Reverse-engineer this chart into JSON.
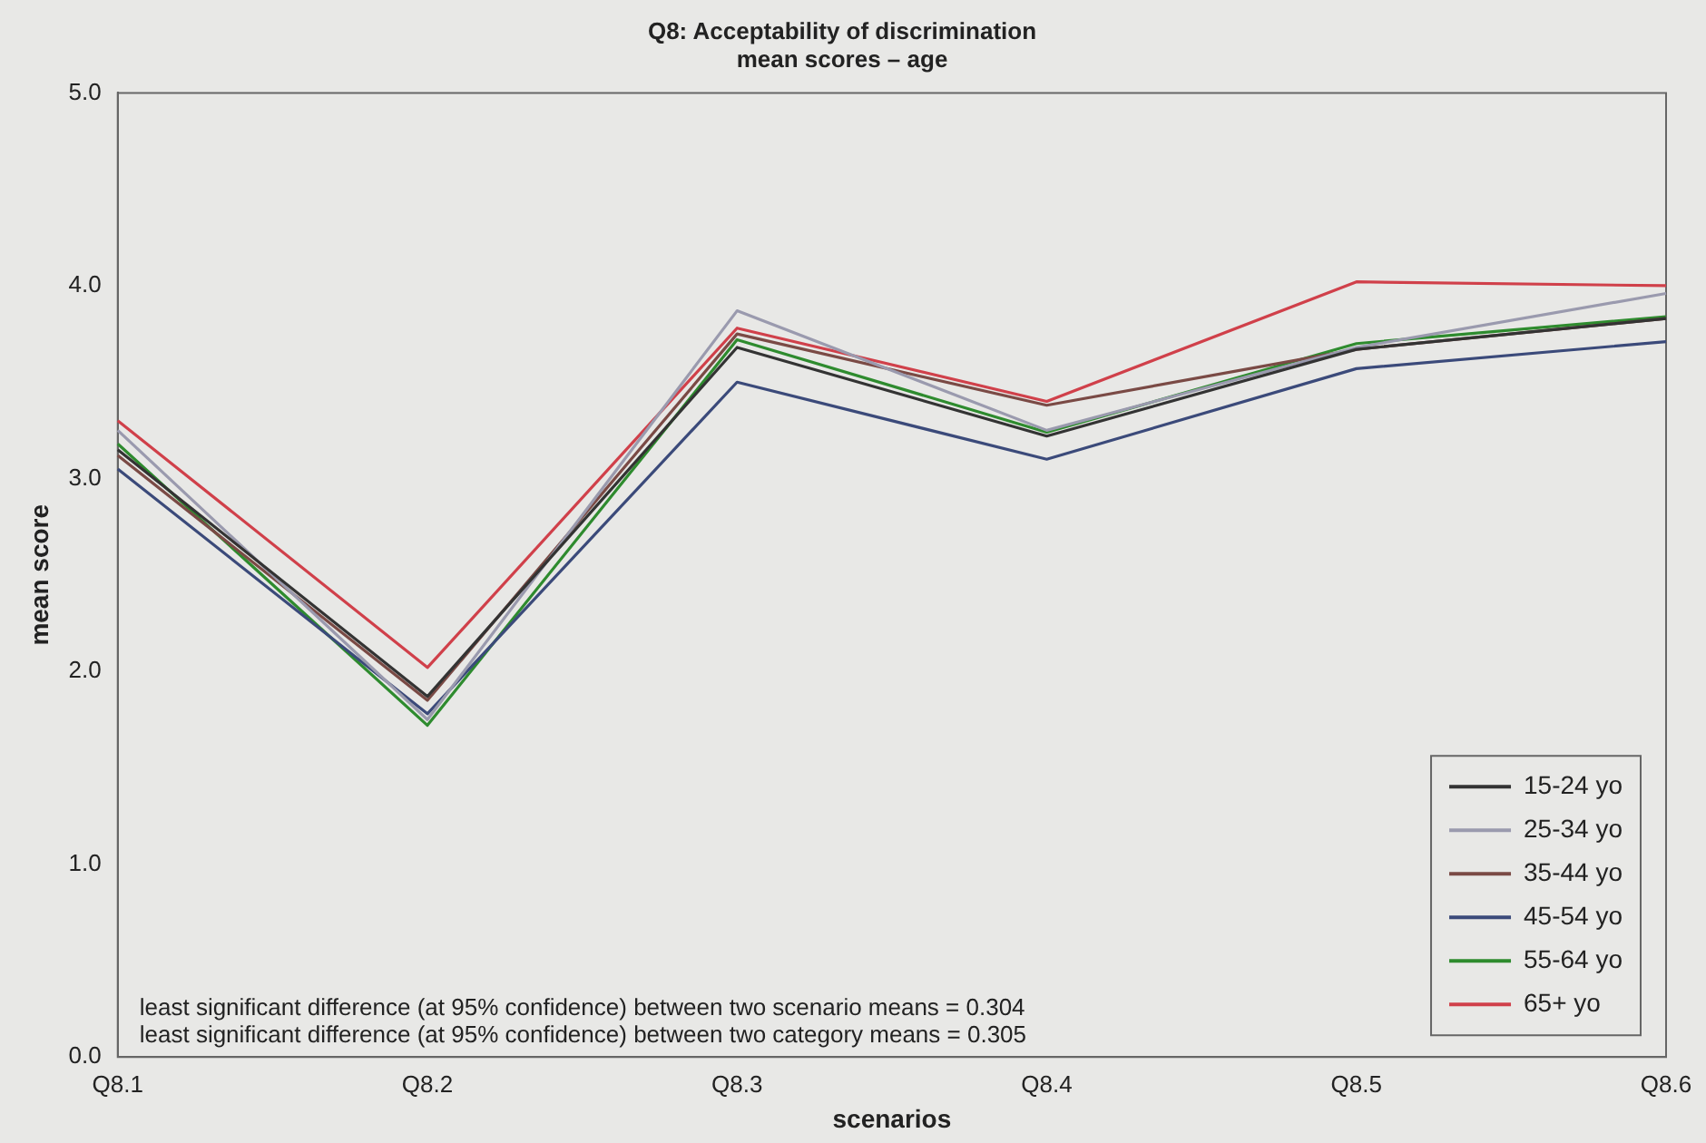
{
  "chart_data": {
    "type": "line",
    "title": "Q8: Acceptability of discrimination",
    "subtitle": "mean scores – age",
    "xlabel": "scenarios",
    "ylabel": "mean score",
    "categories": [
      "Q8.1",
      "Q8.2",
      "Q8.3",
      "Q8.4",
      "Q8.5",
      "Q8.6"
    ],
    "series": [
      {
        "name": "15-24 yo",
        "color": "#333333",
        "values": [
          3.15,
          1.87,
          3.68,
          3.22,
          3.67,
          3.83
        ]
      },
      {
        "name": "25-34 yo",
        "color": "#9a9aae",
        "values": [
          3.25,
          1.75,
          3.87,
          3.25,
          3.68,
          3.96
        ]
      },
      {
        "name": "35-44 yo",
        "color": "#7a4a45",
        "values": [
          3.12,
          1.85,
          3.75,
          3.38,
          3.67,
          3.83
        ]
      },
      {
        "name": "45-54 yo",
        "color": "#3b4a7a",
        "values": [
          3.05,
          1.78,
          3.5,
          3.1,
          3.57,
          3.71
        ]
      },
      {
        "name": "55-64 yo",
        "color": "#2e8b2e",
        "values": [
          3.18,
          1.72,
          3.72,
          3.24,
          3.7,
          3.84
        ]
      },
      {
        "name": "65+ yo",
        "color": "#d0404a",
        "values": [
          3.3,
          2.02,
          3.78,
          3.4,
          4.02,
          4.0
        ]
      }
    ],
    "ylim": [
      0,
      5
    ],
    "yticks": [
      {
        "value": 0,
        "label": "0.0"
      },
      {
        "value": 1,
        "label": "1.0"
      },
      {
        "value": 2,
        "label": "2.0"
      },
      {
        "value": 3,
        "label": "3.0"
      },
      {
        "value": 4,
        "label": "4.0"
      },
      {
        "value": 5,
        "label": "5.0"
      }
    ],
    "grid": false,
    "legend": "bottom right",
    "marker": "none",
    "line_style": "solid",
    "annotations": [
      "least significant difference (at 95% confidence) between two scenario means = 0.304",
      "least significant difference (at 95% confidence) between two category means = 0.305"
    ]
  }
}
